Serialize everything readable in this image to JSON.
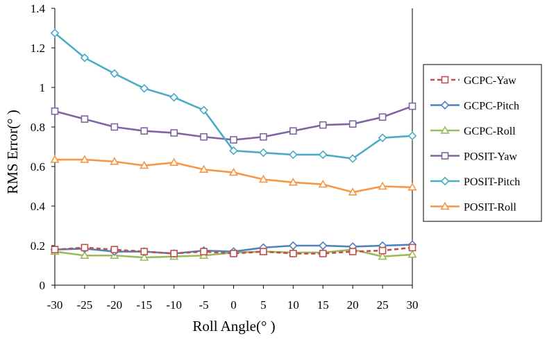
{
  "chart_data": {
    "type": "line",
    "title": "",
    "xlabel": "Roll Angle(° )",
    "ylabel": "RMS Error(° )",
    "x": [
      -30,
      -25,
      -20,
      -15,
      -10,
      -5,
      0,
      5,
      10,
      15,
      20,
      25,
      30
    ],
    "x_tick_labels": [
      "-30",
      "-25",
      "-20",
      "-15",
      "-10",
      "-5",
      "0",
      "5",
      "10",
      "15",
      "20",
      "25",
      "30"
    ],
    "xlim": [
      -30,
      30
    ],
    "ylim": [
      0,
      1.4
    ],
    "y_ticks": [
      0,
      0.2,
      0.4,
      0.6,
      0.8,
      1,
      1.2,
      1.4
    ],
    "y_tick_labels": [
      "0",
      "0.2",
      "0.4",
      "0.6",
      "0.8",
      "1",
      "1.2",
      "1.4"
    ],
    "grid": false,
    "legend_position": "right",
    "series": [
      {
        "name": "GCPC-Yaw",
        "color": "#C0504D",
        "marker": "square",
        "dash": true,
        "values": [
          0.18,
          0.19,
          0.18,
          0.17,
          0.16,
          0.17,
          0.16,
          0.17,
          0.16,
          0.16,
          0.17,
          0.175,
          0.19
        ]
      },
      {
        "name": "GCPC-Pitch",
        "color": "#4F81BD",
        "marker": "diamond",
        "dash": false,
        "values": [
          0.18,
          0.185,
          0.17,
          0.17,
          0.16,
          0.175,
          0.17,
          0.19,
          0.2,
          0.2,
          0.195,
          0.2,
          0.205
        ]
      },
      {
        "name": "GCPC-Roll",
        "color": "#9BBB59",
        "marker": "triangle",
        "dash": false,
        "values": [
          0.17,
          0.15,
          0.15,
          0.14,
          0.145,
          0.15,
          0.165,
          0.17,
          0.165,
          0.165,
          0.18,
          0.145,
          0.155
        ]
      },
      {
        "name": "POSIT-Yaw",
        "color": "#8064A2",
        "marker": "square",
        "dash": false,
        "values": [
          0.88,
          0.84,
          0.8,
          0.78,
          0.77,
          0.75,
          0.735,
          0.75,
          0.78,
          0.81,
          0.815,
          0.85,
          0.905
        ]
      },
      {
        "name": "POSIT-Pitch",
        "color": "#4BACC6",
        "marker": "diamond",
        "dash": false,
        "values": [
          1.275,
          1.15,
          1.07,
          0.995,
          0.95,
          0.885,
          0.68,
          0.67,
          0.66,
          0.66,
          0.64,
          0.745,
          0.755
        ]
      },
      {
        "name": "POSIT-Roll",
        "color": "#F79646",
        "marker": "triangle",
        "dash": false,
        "values": [
          0.635,
          0.635,
          0.625,
          0.605,
          0.62,
          0.585,
          0.57,
          0.535,
          0.52,
          0.51,
          0.47,
          0.5,
          0.495
        ]
      }
    ]
  }
}
